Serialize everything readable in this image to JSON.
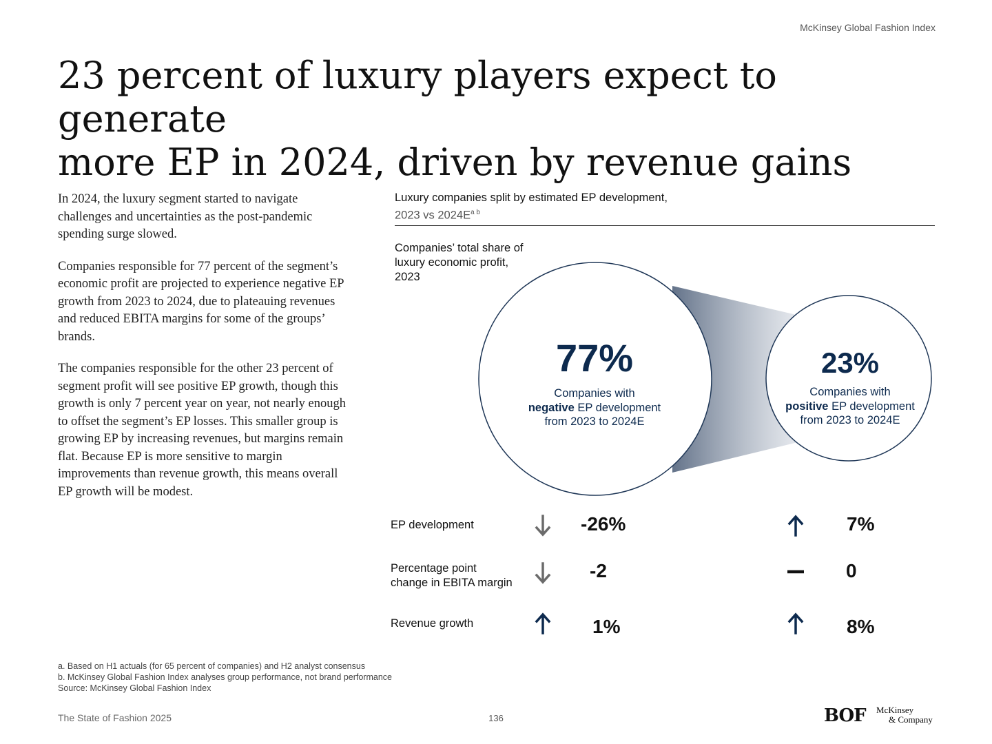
{
  "header": {
    "label": "McKinsey Global Fashion Index"
  },
  "title": {
    "line1": "23 percent of luxury players expect to generate",
    "line2": "more EP in 2024, driven by revenue gains"
  },
  "body": {
    "p1": "In 2024, the luxury segment started to navigate challenges and uncertainties as the post-pandemic spending surge slowed.",
    "p2": "Companies responsible for 77 percent of the segment’s economic profit are projected to experience negative EP growth from 2023 to 2024, due to plateauing revenues and reduced EBITA margins for some of the groups’ brands.",
    "p3": "The companies responsible for the other 23 percent of segment profit will see positive EP growth, though this growth is only 7 percent year on year, not nearly enough to offset the segment’s EP losses. This smaller group is growing EP by increasing revenues, but margins remain flat. Because EP is more sensitive to margin improvements than revenue growth, this means overall EP growth will be modest."
  },
  "chart": {
    "title_line1": "Luxury companies split by estimated EP development,",
    "title_line2": "2023 vs 2024E",
    "title_sup": "a b",
    "share_label": "Companies’ total share of luxury economic profit, 2023",
    "negative": {
      "pct": "77%",
      "line1": "Companies with",
      "bold": "negative",
      "line2_rest": " EP development",
      "line3": "from 2023 to 2024E"
    },
    "positive": {
      "pct": "23%",
      "line1": "Companies with",
      "bold": "positive",
      "line2_rest": " EP development",
      "line3": "from 2023 to 2024E"
    },
    "colors": {
      "navy": "#0d2a4e",
      "grey_arrow": "#6b6b6b",
      "circle_stroke": "#1e3656"
    }
  },
  "chart_data": {
    "type": "table",
    "title": "Luxury companies split by estimated EP development, 2023 vs 2024E",
    "groups": [
      {
        "name": "Companies with negative EP development from 2023 to 2024E",
        "share_of_economic_profit_2023": 77
      },
      {
        "name": "Companies with positive EP development from 2023 to 2024E",
        "share_of_economic_profit_2023": 23
      }
    ],
    "metrics": [
      {
        "label": "EP development",
        "negative": {
          "value": "-26%",
          "direction": "down"
        },
        "positive": {
          "value": "7%",
          "direction": "up"
        }
      },
      {
        "label": "Percentage point change in EBITA margin",
        "negative": {
          "value": "-2",
          "direction": "down"
        },
        "positive": {
          "value": "0",
          "direction": "flat"
        }
      },
      {
        "label": "Revenue growth",
        "negative": {
          "value": "1%",
          "direction": "up"
        },
        "positive": {
          "value": "8%",
          "direction": "up"
        }
      }
    ]
  },
  "metrics_labels": {
    "ep": "EP development",
    "ebita_l1": "Percentage point",
    "ebita_l2": "change in EBITA margin",
    "rev": "Revenue growth"
  },
  "metrics_values": {
    "ep_neg": "-26%",
    "ep_pos": "7%",
    "ebita_neg": "-2",
    "ebita_pos": "0",
    "rev_neg": "1%",
    "rev_pos": "8%"
  },
  "footnotes": {
    "a": "a. Based on H1 actuals (for 65 percent of companies) and H2 analyst consensus",
    "b": "b. McKinsey Global Fashion Index analyses group performance, not brand performance",
    "source": "Source: McKinsey Global Fashion Index"
  },
  "footer": {
    "publication": "The State of Fashion 2025",
    "page": "136",
    "logo_bof": "BOF",
    "logo_mck_l1": "McKinsey",
    "logo_mck_l2": "& Company"
  }
}
